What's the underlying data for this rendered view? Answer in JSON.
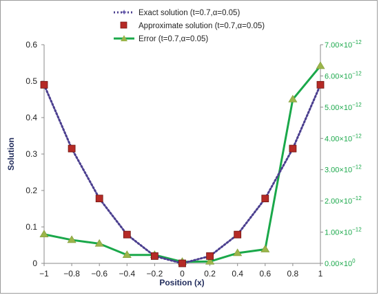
{
  "chart_data": {
    "type": "line",
    "xlabel": "Position (x)",
    "ylabel": "Solution",
    "x": [
      -1,
      -0.8,
      -0.6,
      -0.4,
      -0.2,
      0,
      0.2,
      0.4,
      0.6,
      0.8,
      1
    ],
    "x_ticks": [
      "−1",
      "−0.8",
      "−0.6",
      "−0.4",
      "−0.2",
      "0",
      "0.2",
      "0.4",
      "0.6",
      "0.8",
      "1"
    ],
    "xlim": [
      -1,
      1
    ],
    "ylim": [
      0,
      0.6
    ],
    "y_ticks": [
      "0",
      "0.1",
      "0.2",
      "0.3",
      "0.4",
      "0.5",
      "0.6"
    ],
    "y2lim": [
      0,
      7e-12
    ],
    "y2_ticks": [
      {
        "mant": "0.00",
        "exp": "0"
      },
      {
        "mant": "1.00",
        "exp": "−12"
      },
      {
        "mant": "2.00",
        "exp": "−12"
      },
      {
        "mant": "3.00",
        "exp": "−12"
      },
      {
        "mant": "4.00",
        "exp": "−12"
      },
      {
        "mant": "5.00",
        "exp": "−12"
      },
      {
        "mant": "6.00",
        "exp": "−12"
      },
      {
        "mant": "7.00",
        "exp": "−12"
      }
    ],
    "grid": false,
    "legend_position": "top-center",
    "series": [
      {
        "name": "Exact solution (t=0.7,α=0.05)",
        "axis": "left",
        "style": "dotted",
        "color": "#4b3f8f",
        "values": [
          0.49,
          0.315,
          0.178,
          0.079,
          0.02,
          0.0,
          0.02,
          0.079,
          0.178,
          0.315,
          0.49
        ]
      },
      {
        "name": "Approximate solution (t=0.7,α=0.05)",
        "axis": "left",
        "style": "marker-square",
        "color": "#b52a26",
        "values": [
          0.49,
          0.315,
          0.178,
          0.079,
          0.02,
          0.0,
          0.02,
          0.079,
          0.178,
          0.315,
          0.49
        ]
      },
      {
        "name": "Error (t=0.7,α=0.05)",
        "axis": "right",
        "style": "solid-triangle",
        "color": "#1aa84a",
        "marker_color": "#9bb54a",
        "values": [
          9.3e-13,
          7.5e-13,
          6.3e-13,
          2.7e-13,
          2.7e-13,
          5e-14,
          6e-14,
          3.3e-13,
          4.5e-13,
          5.25e-12,
          6.32e-12
        ]
      }
    ]
  }
}
